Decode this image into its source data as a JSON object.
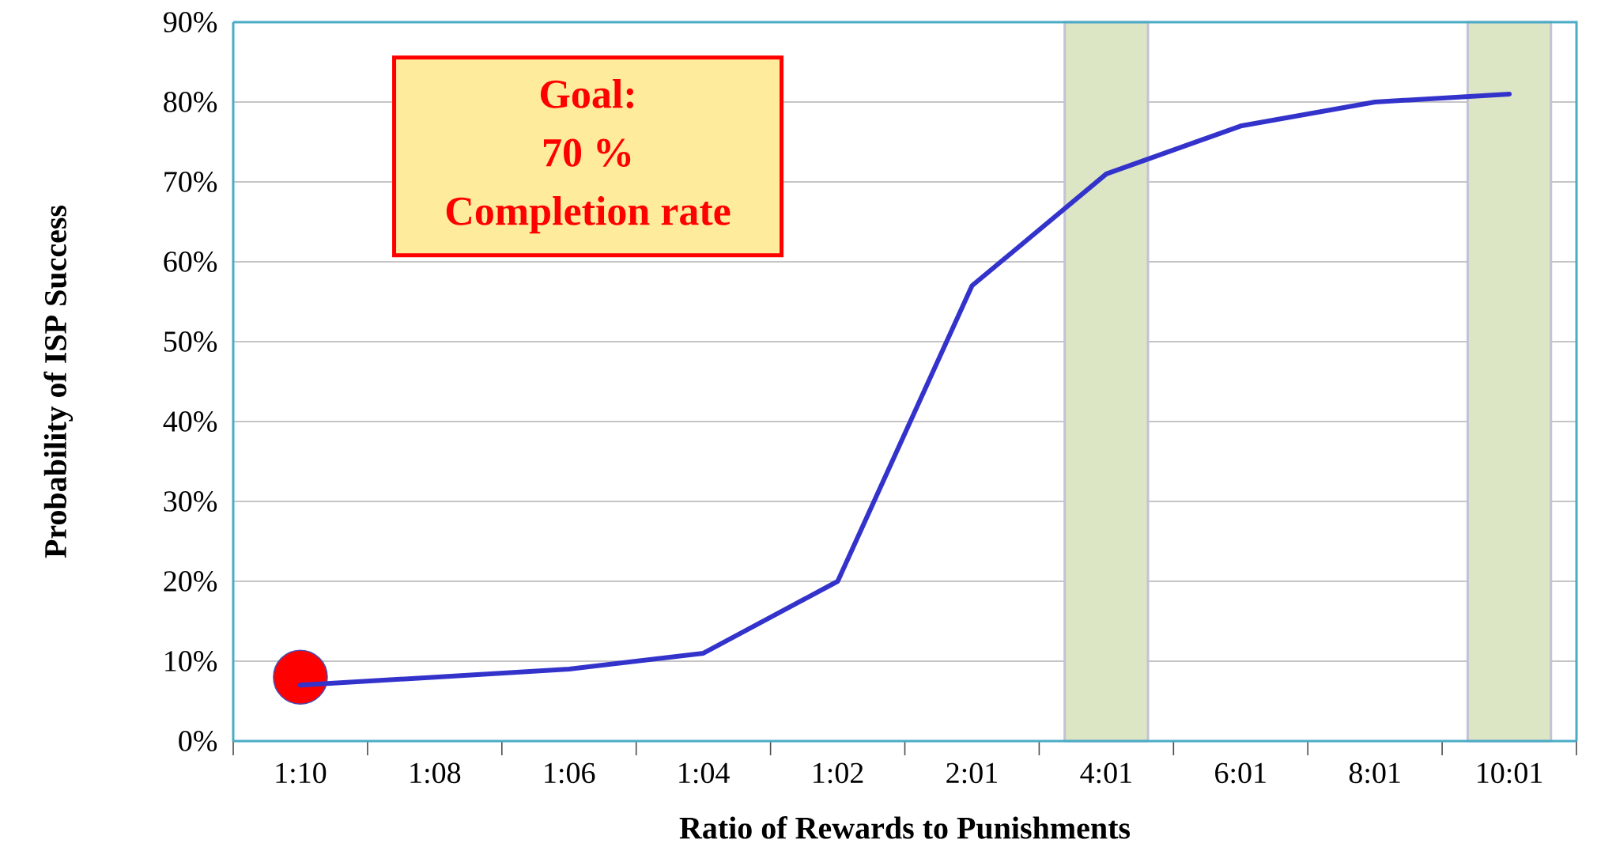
{
  "chart_data": {
    "type": "line",
    "xlabel": "Ratio of Rewards to Punishments",
    "ylabel": "Probability of ISP Success",
    "categories": [
      "1:10",
      "1:08",
      "1:06",
      "1:04",
      "1:02",
      "2:01",
      "4:01",
      "6:01",
      "8:01",
      "10:01"
    ],
    "series": [
      {
        "color": "#3333cc",
        "marker": "none",
        "values": [
          7,
          8,
          9,
          11,
          20,
          57,
          71,
          77,
          80,
          81
        ]
      },
      {
        "type": "scatter",
        "color": "#ff0000",
        "marker": "circle",
        "x": [
          "1:10"
        ],
        "values": [
          8
        ]
      }
    ],
    "ylim": [
      0,
      90
    ],
    "yticks": [
      {
        "value": 0,
        "label": "0%"
      },
      {
        "value": 10,
        "label": "10%"
      },
      {
        "value": 20,
        "label": "20%"
      },
      {
        "value": 30,
        "label": "30%"
      },
      {
        "value": 40,
        "label": "40%"
      },
      {
        "value": 50,
        "label": "50%"
      },
      {
        "value": 60,
        "label": "60%"
      },
      {
        "value": 70,
        "label": "70%"
      },
      {
        "value": 80,
        "label": "80%"
      },
      {
        "value": 90,
        "label": "90%"
      }
    ],
    "grid": "y",
    "bands": [
      {
        "axis": "x",
        "from": "4:01",
        "to": "4:01",
        "color": "#dce6c4"
      },
      {
        "axis": "x",
        "from": "10:01",
        "to": "10:01",
        "color": "#dce6c4"
      }
    ],
    "annotations": [
      "Goal:",
      "70 %",
      "Completion rate"
    ]
  }
}
